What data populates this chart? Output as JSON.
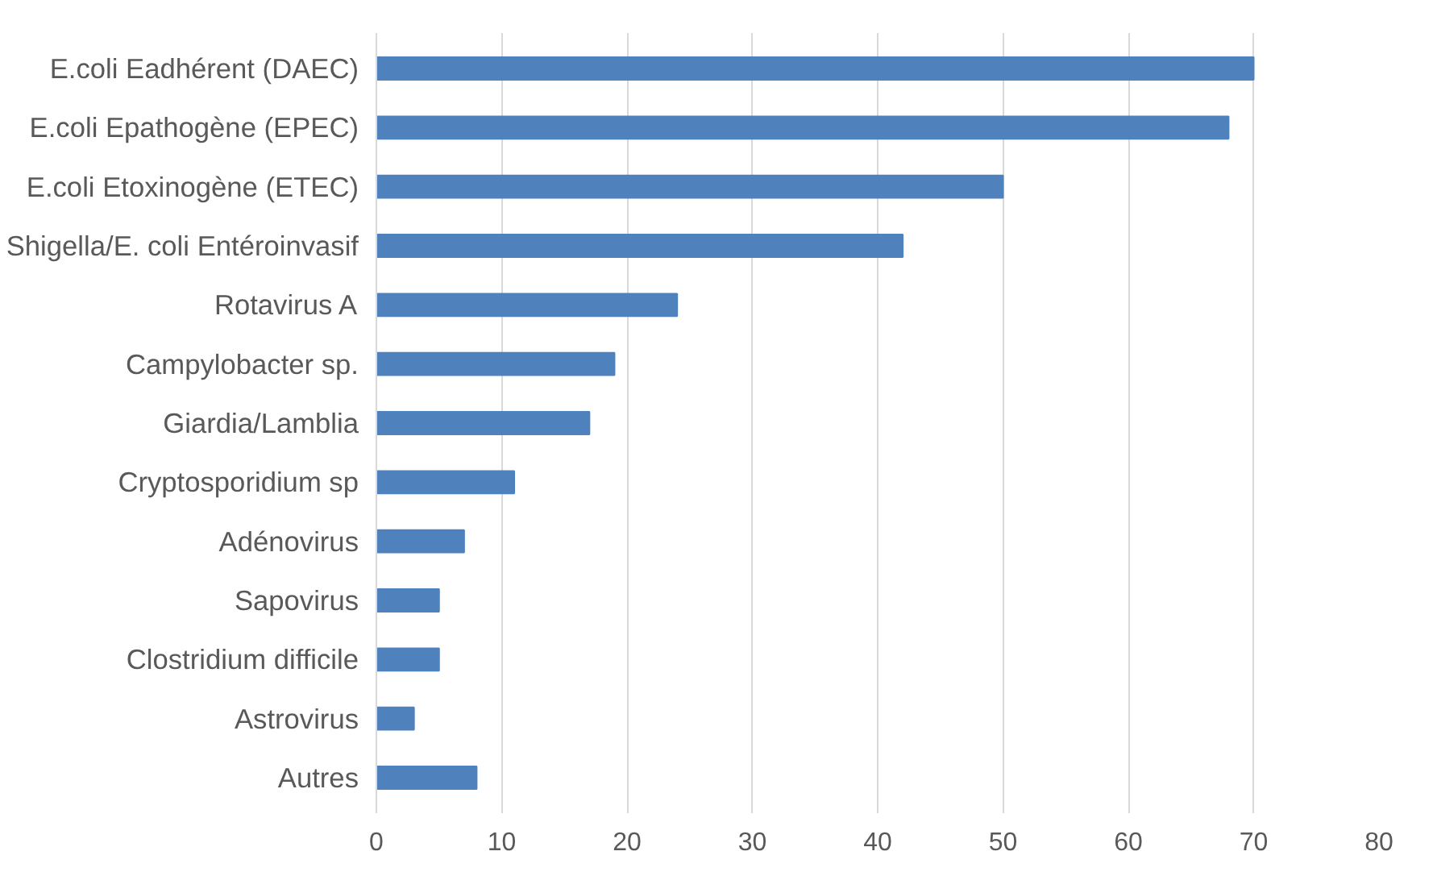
{
  "chart_data": {
    "type": "bar",
    "orientation": "horizontal",
    "categories": [
      "E.coli Eadhérent (DAEC)",
      "E.coli Epathogène (EPEC)",
      "E.coli Etoxinogène (ETEC)",
      "Shigella/E. coli Entéroinvasif",
      "Rotavirus A",
      "Campylobacter sp.",
      "Giardia/Lamblia",
      "Cryptosporidium sp",
      "Adénovirus",
      "Sapovirus",
      "Clostridium difficile",
      "Astrovirus",
      "Autres"
    ],
    "values": [
      70,
      68,
      50,
      42,
      24,
      19,
      17,
      11,
      7,
      5,
      5,
      3,
      8
    ],
    "color": "#4f81bd",
    "xlim": [
      0,
      80
    ],
    "xticks": [
      0,
      10,
      20,
      30,
      40,
      50,
      60,
      70,
      80
    ],
    "grid": "x"
  }
}
